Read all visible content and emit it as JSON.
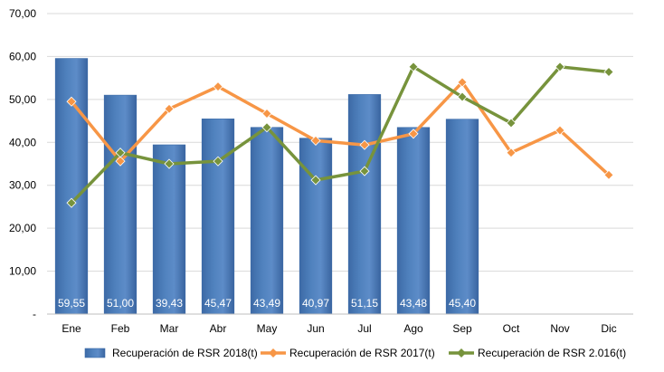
{
  "chart_data": {
    "type": "bar",
    "categories": [
      "Ene",
      "Feb",
      "Mar",
      "Abr",
      "May",
      "Jun",
      "Jul",
      "Ago",
      "Sep",
      "Oct",
      "Nov",
      "Dic"
    ],
    "ylim": [
      0,
      70
    ],
    "yticks": [
      {
        "value": 0,
        "label": "-"
      },
      {
        "value": 10,
        "label": "10,00"
      },
      {
        "value": 20,
        "label": "20,00"
      },
      {
        "value": 30,
        "label": "30,00"
      },
      {
        "value": 40,
        "label": "40,00"
      },
      {
        "value": 50,
        "label": "50,00"
      },
      {
        "value": 60,
        "label": "60,00"
      },
      {
        "value": 70,
        "label": "70,00"
      }
    ],
    "grid": true,
    "legend_position": "bottom",
    "series": [
      {
        "name": "Recuperación de RSR 2018(t)",
        "kind": "bar",
        "color": "#4f81bd",
        "values": [
          59.55,
          51.0,
          39.43,
          45.47,
          43.49,
          40.97,
          51.15,
          43.48,
          45.4,
          null,
          null,
          null
        ],
        "labels": [
          "59,55",
          "51,00",
          "39,43",
          "45,47",
          "43,49",
          "40,97",
          "51,15",
          "43,48",
          "45,40",
          "",
          "",
          ""
        ]
      },
      {
        "name": "Recuperación de RSR 2017(t)",
        "kind": "line",
        "color": "#f79646",
        "values": [
          49.5,
          35.6,
          47.8,
          53.0,
          46.7,
          40.4,
          39.4,
          42.0,
          54.0,
          37.6,
          42.8,
          32.4
        ]
      },
      {
        "name": "Recuperación de RSR 2.016(t)",
        "kind": "line",
        "color": "#77933c",
        "values": [
          25.9,
          37.6,
          35.0,
          35.6,
          43.5,
          31.2,
          33.3,
          57.6,
          50.6,
          44.5,
          57.6,
          56.4
        ]
      }
    ]
  }
}
